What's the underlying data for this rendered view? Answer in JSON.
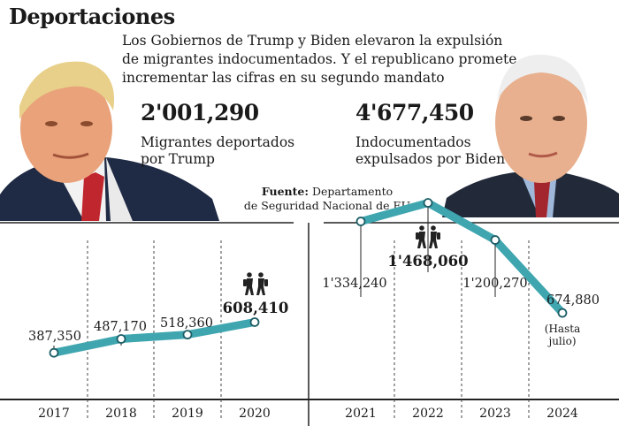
{
  "title": "Deportaciones",
  "intro": "Los Gobiernos de Trump y Biden elevaron la expulsión de migrantes indocumentados. Y el republicano promete incrementar las cifras en su segundo mandato",
  "trump": {
    "total": "2'001,290",
    "label_line1": "Migrantes deportados",
    "label_line2": "por Trump"
  },
  "biden": {
    "total": "4'677,450",
    "label_line1": "Indocumentados",
    "label_line2": "expulsados por Biden"
  },
  "source": {
    "label": "Fuente:",
    "text_line1": "Departamento",
    "text_line2": "de Seguridad Nacional de EU"
  },
  "colors": {
    "line": "#3fa6b0",
    "text": "#1a1a1a"
  },
  "chart_data": [
    {
      "type": "line",
      "name": "Trump",
      "x": [
        "2017",
        "2018",
        "2019",
        "2020"
      ],
      "values": [
        387350,
        487170,
        518360,
        608410
      ],
      "labels": [
        "387,350",
        "487,170",
        "518,360",
        "608,410"
      ],
      "highlight_index": 3
    },
    {
      "type": "line",
      "name": "Biden",
      "x": [
        "2021",
        "2022",
        "2023",
        "2024"
      ],
      "values": [
        1334240,
        1468060,
        1200270,
        674880
      ],
      "labels": [
        "1'334,240",
        "1'468,060",
        "1'200,270",
        "674,880"
      ],
      "highlight_index": 1,
      "note_line1": "(Hasta",
      "note_line2": "julio)"
    }
  ]
}
